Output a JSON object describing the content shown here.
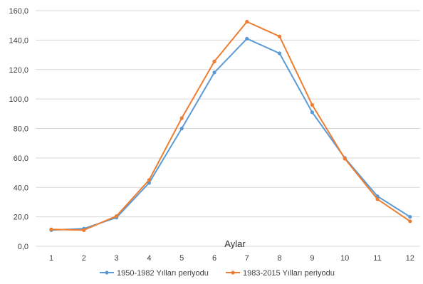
{
  "chart_data": {
    "type": "line",
    "title": "",
    "xlabel": "Aylar",
    "ylabel": "",
    "categories": [
      "1",
      "2",
      "3",
      "4",
      "5",
      "6",
      "7",
      "8",
      "9",
      "10",
      "11",
      "12"
    ],
    "ylim": [
      0,
      160
    ],
    "yticks": [
      "0,0",
      "20,0",
      "40,0",
      "60,0",
      "80,0",
      "100,0",
      "120,0",
      "140,0",
      "160,0"
    ],
    "ytick_values": [
      0,
      20,
      40,
      60,
      80,
      100,
      120,
      140,
      160
    ],
    "grid": "horizontal",
    "legend_position": "bottom",
    "series": [
      {
        "name": "1950-1982 Yılları periyodu",
        "color": "#5b9bd5",
        "values": [
          11.0,
          12.0,
          19.5,
          43.0,
          80.0,
          118.0,
          141.0,
          131.0,
          91.0,
          60.0,
          34.0,
          20.0
        ]
      },
      {
        "name": "1983-2015 Yılları periyodu",
        "color": "#ed7d31",
        "values": [
          11.5,
          11.0,
          20.5,
          45.0,
          87.0,
          125.5,
          152.5,
          142.5,
          96.0,
          59.5,
          32.0,
          17.0
        ]
      }
    ]
  }
}
